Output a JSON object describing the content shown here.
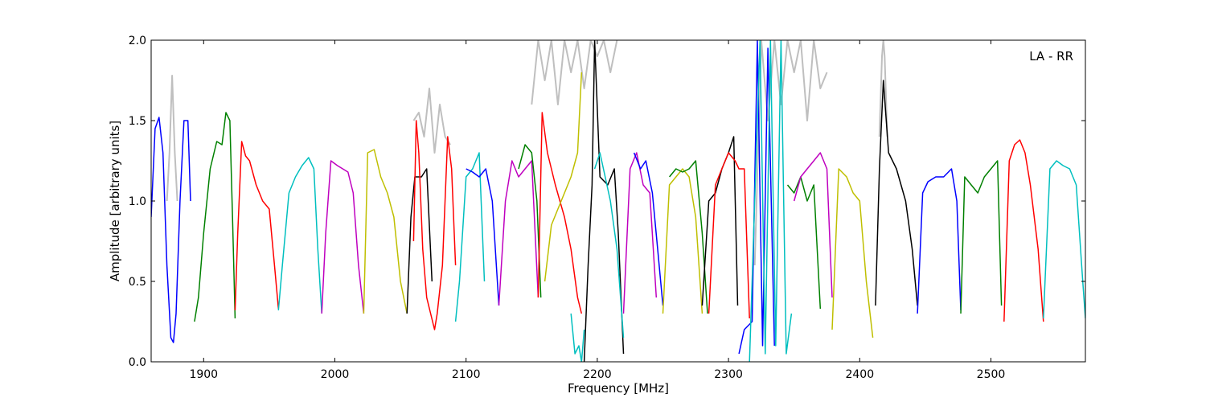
{
  "chart_data": {
    "type": "line",
    "annotation": "LA - RR",
    "xlabel": "Frequency [MHz]",
    "ylabel": "Amplitude [arbitrary units]",
    "xlim": [
      1860,
      2572
    ],
    "ylim": [
      0.0,
      2.0
    ],
    "xticks": [
      "1900",
      "2000",
      "2100",
      "2200",
      "2300",
      "2400",
      "2500"
    ],
    "yticks": [
      "0.0",
      "0.5",
      "1.0",
      "1.5",
      "2.0"
    ],
    "grid": false,
    "background_series_color": "#bfbfbf",
    "palette": [
      "#0000ff",
      "#008000",
      "#ff0000",
      "#00bfbf",
      "#bf00bf",
      "#bfbf00",
      "#000000"
    ],
    "segments": [
      {
        "color": "#0000ff",
        "x": [
          1860,
          1863,
          1866,
          1869,
          1872,
          1875,
          1877,
          1879,
          1882,
          1885,
          1888,
          1890
        ],
        "y": [
          0.9,
          1.45,
          1.52,
          1.3,
          0.6,
          0.15,
          0.12,
          0.3,
          1.0,
          1.5,
          1.5,
          1.0
        ]
      },
      {
        "color": "#008000",
        "x": [
          1893,
          1896,
          1900,
          1905,
          1910,
          1914,
          1917,
          1920,
          1922,
          1924
        ],
        "y": [
          0.25,
          0.4,
          0.8,
          1.2,
          1.37,
          1.35,
          1.55,
          1.5,
          0.9,
          0.27
        ]
      },
      {
        "color": "#ff0000",
        "x": [
          1924,
          1926,
          1929,
          1932,
          1935,
          1940,
          1945,
          1950,
          1954,
          1957
        ],
        "y": [
          0.32,
          0.8,
          1.37,
          1.28,
          1.25,
          1.1,
          1.0,
          0.95,
          0.6,
          0.33
        ]
      },
      {
        "color": "#00bfbf",
        "x": [
          1957,
          1960,
          1965,
          1970,
          1975,
          1980,
          1984,
          1987,
          1990
        ],
        "y": [
          0.32,
          0.6,
          1.05,
          1.15,
          1.22,
          1.27,
          1.2,
          0.7,
          0.3
        ]
      },
      {
        "color": "#bf00bf",
        "x": [
          1990,
          1993,
          1997,
          2002,
          2006,
          2010,
          2014,
          2018,
          2022
        ],
        "y": [
          0.3,
          0.8,
          1.25,
          1.22,
          1.2,
          1.18,
          1.05,
          0.6,
          0.3
        ]
      },
      {
        "color": "#bfbf00",
        "x": [
          2022,
          2025,
          2030,
          2035,
          2040,
          2045,
          2050,
          2055
        ],
        "y": [
          0.3,
          1.3,
          1.32,
          1.15,
          1.05,
          0.9,
          0.5,
          0.3
        ]
      },
      {
        "color": "#000000",
        "x": [
          2055,
          2058,
          2061,
          2066,
          2070,
          2074
        ],
        "y": [
          0.3,
          0.9,
          1.15,
          1.15,
          1.2,
          0.5
        ]
      },
      {
        "color": "#ff0000",
        "x": [
          2060,
          2062,
          2064,
          2067,
          2070,
          2073,
          2076,
          2078,
          2082,
          2086,
          2089,
          2092
        ],
        "y": [
          0.75,
          1.5,
          1.3,
          0.7,
          0.4,
          0.3,
          0.2,
          0.3,
          0.6,
          1.4,
          1.2,
          0.6
        ]
      },
      {
        "color": "#00bfbf",
        "x": [
          2092,
          2095,
          2100,
          2105,
          2110,
          2114
        ],
        "y": [
          0.25,
          0.5,
          1.15,
          1.2,
          1.3,
          0.5
        ]
      },
      {
        "color": "#0000ff",
        "x": [
          2100,
          2105,
          2110,
          2115,
          2120,
          2125
        ],
        "y": [
          1.2,
          1.18,
          1.15,
          1.2,
          1.0,
          0.35
        ]
      },
      {
        "color": "#bf00bf",
        "x": [
          2125,
          2130,
          2135,
          2140,
          2145,
          2150,
          2155
        ],
        "y": [
          0.35,
          1.0,
          1.25,
          1.15,
          1.2,
          1.25,
          0.4
        ]
      },
      {
        "color": "#008000",
        "x": [
          2140,
          2145,
          2150,
          2154,
          2157
        ],
        "y": [
          1.2,
          1.35,
          1.3,
          1.0,
          0.4
        ]
      },
      {
        "color": "#ff0000",
        "x": [
          2155,
          2158,
          2162,
          2168,
          2175,
          2180,
          2185,
          2188
        ],
        "y": [
          0.4,
          1.55,
          1.3,
          1.1,
          0.9,
          0.7,
          0.4,
          0.3
        ]
      },
      {
        "color": "#bfbf00",
        "x": [
          2160,
          2165,
          2170,
          2175,
          2180,
          2185,
          2188
        ],
        "y": [
          0.5,
          0.85,
          0.95,
          1.05,
          1.15,
          1.3,
          1.8
        ]
      },
      {
        "color": "#00bfbf",
        "x": [
          2180,
          2183,
          2186,
          2188,
          2190
        ],
        "y": [
          0.3,
          0.05,
          0.1,
          0.0,
          0.2
        ]
      },
      {
        "color": "#000000",
        "x": [
          2190,
          2193,
          2196,
          2198,
          2202,
          2208,
          2213,
          2216,
          2220
        ],
        "y": [
          0.0,
          0.6,
          1.1,
          2.0,
          1.15,
          1.1,
          1.2,
          0.8,
          0.05
        ]
      },
      {
        "color": "#00bfbf",
        "x": [
          2198,
          2202,
          2206,
          2210,
          2215,
          2220
        ],
        "y": [
          1.2,
          1.3,
          1.15,
          1.0,
          0.7,
          0.15
        ]
      },
      {
        "color": "#bf00bf",
        "x": [
          2220,
          2225,
          2230,
          2235,
          2240,
          2245
        ],
        "y": [
          0.3,
          1.2,
          1.3,
          1.1,
          1.05,
          0.4
        ]
      },
      {
        "color": "#0000ff",
        "x": [
          2228,
          2233,
          2237,
          2242,
          2246,
          2250
        ],
        "y": [
          1.3,
          1.2,
          1.25,
          1.05,
          0.7,
          0.35
        ]
      },
      {
        "color": "#bfbf00",
        "x": [
          2250,
          2255,
          2260,
          2265,
          2270,
          2275,
          2280
        ],
        "y": [
          0.3,
          1.1,
          1.15,
          1.2,
          1.15,
          0.9,
          0.3
        ]
      },
      {
        "color": "#008000",
        "x": [
          2255,
          2260,
          2265,
          2270,
          2275,
          2280,
          2284
        ],
        "y": [
          1.15,
          1.2,
          1.18,
          1.2,
          1.25,
          0.8,
          0.3
        ]
      },
      {
        "color": "#000000",
        "x": [
          2280,
          2285,
          2290,
          2295,
          2300,
          2304,
          2307
        ],
        "y": [
          0.35,
          1.0,
          1.05,
          1.2,
          1.3,
          1.4,
          0.35
        ]
      },
      {
        "color": "#ff0000",
        "x": [
          2285,
          2290,
          2295,
          2300,
          2305,
          2308,
          2312,
          2316
        ],
        "y": [
          0.3,
          1.1,
          1.2,
          1.3,
          1.25,
          1.2,
          1.2,
          0.27
        ]
      },
      {
        "color": "#0000ff",
        "x": [
          2308,
          2312,
          2318,
          2322,
          2326,
          2330,
          2335
        ],
        "y": [
          0.05,
          0.2,
          0.25,
          2.0,
          0.1,
          1.95,
          0.1
        ]
      },
      {
        "color": "#00bfbf",
        "x": [
          2316,
          2320,
          2324,
          2328,
          2332,
          2336,
          2340,
          2344,
          2348
        ],
        "y": [
          0.0,
          1.0,
          2.0,
          0.05,
          2.0,
          0.1,
          2.0,
          0.05,
          0.3
        ]
      },
      {
        "color": "#008000",
        "x": [
          2345,
          2350,
          2355,
          2360,
          2365,
          2370
        ],
        "y": [
          1.1,
          1.05,
          1.15,
          1.0,
          1.1,
          0.33
        ]
      },
      {
        "color": "#bf00bf",
        "x": [
          2350,
          2355,
          2360,
          2365,
          2370,
          2375,
          2379
        ],
        "y": [
          1.0,
          1.15,
          1.2,
          1.25,
          1.3,
          1.2,
          0.4
        ]
      },
      {
        "color": "#bfbf00",
        "x": [
          2379,
          2384,
          2390,
          2395,
          2400,
          2405,
          2410
        ],
        "y": [
          0.2,
          1.2,
          1.15,
          1.05,
          1.0,
          0.5,
          0.15
        ]
      },
      {
        "color": "#000000",
        "x": [
          2412,
          2415,
          2418,
          2422,
          2428,
          2435,
          2440,
          2444
        ],
        "y": [
          0.35,
          1.2,
          1.75,
          1.3,
          1.2,
          1.0,
          0.7,
          0.35
        ]
      },
      {
        "color": "#0000ff",
        "x": [
          2444,
          2448,
          2452,
          2458,
          2464,
          2470,
          2474,
          2477
        ],
        "y": [
          0.3,
          1.05,
          1.12,
          1.15,
          1.15,
          1.2,
          1.0,
          0.32
        ]
      },
      {
        "color": "#008000",
        "x": [
          2477,
          2480,
          2485,
          2490,
          2495,
          2500,
          2505,
          2508
        ],
        "y": [
          0.3,
          1.15,
          1.1,
          1.05,
          1.15,
          1.2,
          1.25,
          0.35
        ]
      },
      {
        "color": "#ff0000",
        "x": [
          2510,
          2514,
          2518,
          2522,
          2526,
          2530,
          2536,
          2540
        ],
        "y": [
          0.25,
          1.25,
          1.35,
          1.38,
          1.3,
          1.1,
          0.7,
          0.25
        ]
      },
      {
        "color": "#00bfbf",
        "x": [
          2540,
          2545,
          2550,
          2555,
          2560,
          2565,
          2570,
          2572
        ],
        "y": [
          0.27,
          1.2,
          1.25,
          1.22,
          1.2,
          1.1,
          0.5,
          0.27
        ]
      }
    ],
    "background_segments": [
      {
        "x": [
          1872,
          1874,
          1876,
          1878,
          1880
        ],
        "y": [
          1.0,
          1.3,
          1.78,
          1.3,
          1.0
        ]
      },
      {
        "x": [
          2060,
          2064,
          2068,
          2072,
          2076,
          2080,
          2084,
          2088
        ],
        "y": [
          1.5,
          1.55,
          1.4,
          1.7,
          1.3,
          1.6,
          1.4,
          1.35
        ]
      },
      {
        "x": [
          2150,
          2155,
          2160,
          2165,
          2170,
          2175,
          2180,
          2185,
          2190,
          2195,
          2200,
          2205,
          2210,
          2215
        ],
        "y": [
          1.6,
          2.0,
          1.75,
          2.0,
          1.6,
          2.0,
          1.8,
          2.0,
          1.7,
          2.0,
          1.9,
          2.0,
          1.8,
          2.0
        ]
      },
      {
        "x": [
          2320,
          2325,
          2330,
          2335,
          2340,
          2345,
          2350,
          2355,
          2360,
          2365,
          2370,
          2375
        ],
        "y": [
          0.6,
          2.0,
          1.5,
          2.0,
          1.6,
          2.0,
          1.8,
          2.0,
          1.5,
          2.0,
          1.7,
          1.8
        ]
      },
      {
        "x": [
          2415,
          2417,
          2418,
          2419,
          2421
        ],
        "y": [
          1.4,
          1.9,
          2.0,
          1.9,
          1.4
        ]
      }
    ]
  }
}
